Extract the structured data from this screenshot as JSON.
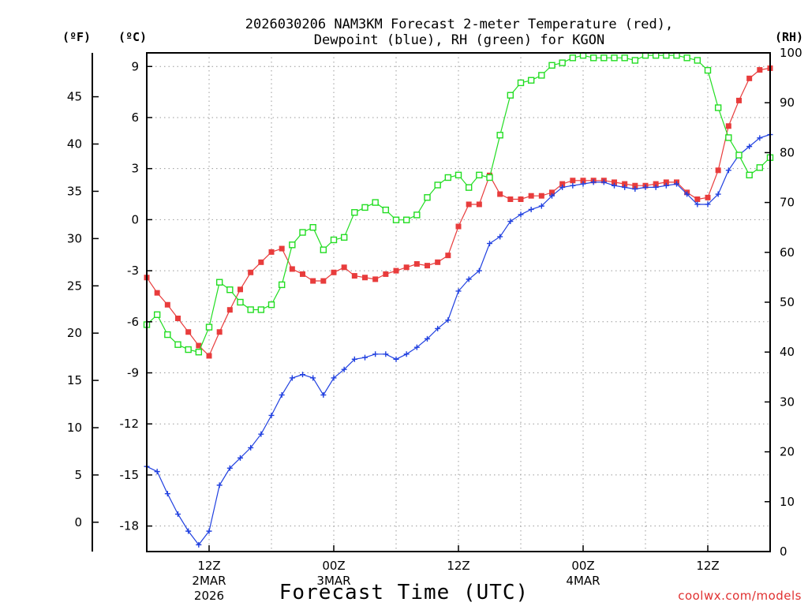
{
  "chart_data": {
    "type": "line",
    "title_line1": "2026030206 NAM3KM Forecast 2-meter Temperature (red),",
    "title_line2": "Dewpoint (blue), RH (green) for KGON",
    "unit_f": "(ºF)",
    "unit_c": "(ºC)",
    "unit_rh": "(RH)",
    "xlabel": "Forecast Time (UTC)",
    "credit": "coolwx.com/models",
    "x_range_hours": [
      0,
      60
    ],
    "ylim_c": [
      -19.5,
      9.8
    ],
    "ylim_rh": [
      0,
      100
    ],
    "c_ticks": [
      "9",
      "6",
      "3",
      "0",
      "-3",
      "-6",
      "-9",
      "-12",
      "-15",
      "-18"
    ],
    "f_ticks": [
      "45",
      "40",
      "35",
      "30",
      "25",
      "20",
      "15",
      "10",
      "5",
      "0"
    ],
    "rh_ticks": [
      "100",
      "90",
      "80",
      "70",
      "60",
      "50",
      "40",
      "30",
      "20",
      "10",
      "0"
    ],
    "x_ticks": [
      {
        "hour": 6,
        "label": "12Z",
        "sub1": "2MAR",
        "sub2": "2026"
      },
      {
        "hour": 18,
        "label": "00Z",
        "sub1": "3MAR",
        "sub2": ""
      },
      {
        "hour": 30,
        "label": "12Z",
        "sub1": "",
        "sub2": ""
      },
      {
        "hour": 42,
        "label": "00Z",
        "sub1": "4MAR",
        "sub2": ""
      },
      {
        "hour": 54,
        "label": "12Z",
        "sub1": "",
        "sub2": ""
      }
    ],
    "hours": [
      0,
      1,
      2,
      3,
      4,
      5,
      6,
      7,
      8,
      9,
      10,
      11,
      12,
      13,
      14,
      15,
      16,
      17,
      18,
      19,
      20,
      21,
      22,
      23,
      24,
      25,
      26,
      27,
      28,
      29,
      30,
      31,
      32,
      33,
      34,
      35,
      36,
      37,
      38,
      39,
      40,
      41,
      42,
      43,
      44,
      45,
      46,
      47,
      48,
      49,
      50,
      51,
      52,
      53,
      54,
      55,
      56,
      57,
      58,
      59,
      60
    ],
    "series": [
      {
        "name": "2-meter Temperature (°C)",
        "color": "#e83c3c",
        "axis": "c",
        "values": [
          -3.4,
          -4.3,
          -5.0,
          -5.8,
          -6.6,
          -7.4,
          -8.0,
          -6.6,
          -5.3,
          -4.1,
          -3.1,
          -2.5,
          -1.9,
          -1.7,
          -2.9,
          -3.2,
          -3.6,
          -3.6,
          -3.1,
          -2.8,
          -3.3,
          -3.4,
          -3.5,
          -3.2,
          -3.0,
          -2.8,
          -2.6,
          -2.7,
          -2.5,
          -2.1,
          -0.4,
          0.9,
          0.9,
          2.6,
          1.5,
          1.2,
          1.2,
          1.4,
          1.4,
          1.6,
          2.1,
          2.3,
          2.3,
          2.3,
          2.3,
          2.2,
          2.1,
          2.0,
          2.0,
          2.1,
          2.2,
          2.2,
          1.6,
          1.2,
          1.3,
          2.9,
          5.5,
          7.0,
          8.3,
          8.8,
          8.9
        ]
      },
      {
        "name": "Dewpoint (°C)",
        "color": "#2040e0",
        "axis": "c",
        "values": [
          -14.5,
          -14.8,
          -16.1,
          -17.3,
          -18.3,
          -19.1,
          -18.3,
          -15.6,
          -14.6,
          -14.0,
          -13.4,
          -12.6,
          -11.5,
          -10.3,
          -9.3,
          -9.1,
          -9.3,
          -10.3,
          -9.3,
          -8.8,
          -8.2,
          -8.1,
          -7.9,
          -7.9,
          -8.2,
          -7.9,
          -7.5,
          -7.0,
          -6.4,
          -5.9,
          -4.2,
          -3.5,
          -3.0,
          -1.4,
          -1.0,
          -0.1,
          0.3,
          0.6,
          0.8,
          1.4,
          1.9,
          2.0,
          2.1,
          2.2,
          2.2,
          2.0,
          1.9,
          1.8,
          1.9,
          1.9,
          2.0,
          2.1,
          1.5,
          0.9,
          0.9,
          1.5,
          2.9,
          3.8,
          4.3,
          4.8,
          5.0
        ]
      },
      {
        "name": "RH (%)",
        "color": "#22dd22",
        "axis": "rh",
        "values": [
          45.5,
          47.5,
          43.5,
          41.5,
          40.5,
          40.0,
          45.0,
          54.0,
          52.5,
          50.0,
          48.5,
          48.5,
          49.5,
          53.5,
          61.5,
          64.0,
          65.0,
          60.5,
          62.5,
          63.0,
          68.0,
          69.0,
          70.0,
          68.5,
          66.5,
          66.5,
          67.5,
          71.0,
          73.5,
          75.0,
          75.5,
          73.0,
          75.5,
          75.0,
          83.5,
          91.5,
          94.0,
          94.5,
          95.5,
          97.5,
          98.0,
          99.0,
          99.5,
          99.0,
          99.0,
          99.0,
          99.0,
          98.5,
          99.5,
          99.5,
          99.5,
          99.5,
          99.0,
          98.5,
          96.5,
          89.0,
          83.0,
          79.5,
          75.5,
          77.0,
          79.0
        ]
      }
    ]
  }
}
